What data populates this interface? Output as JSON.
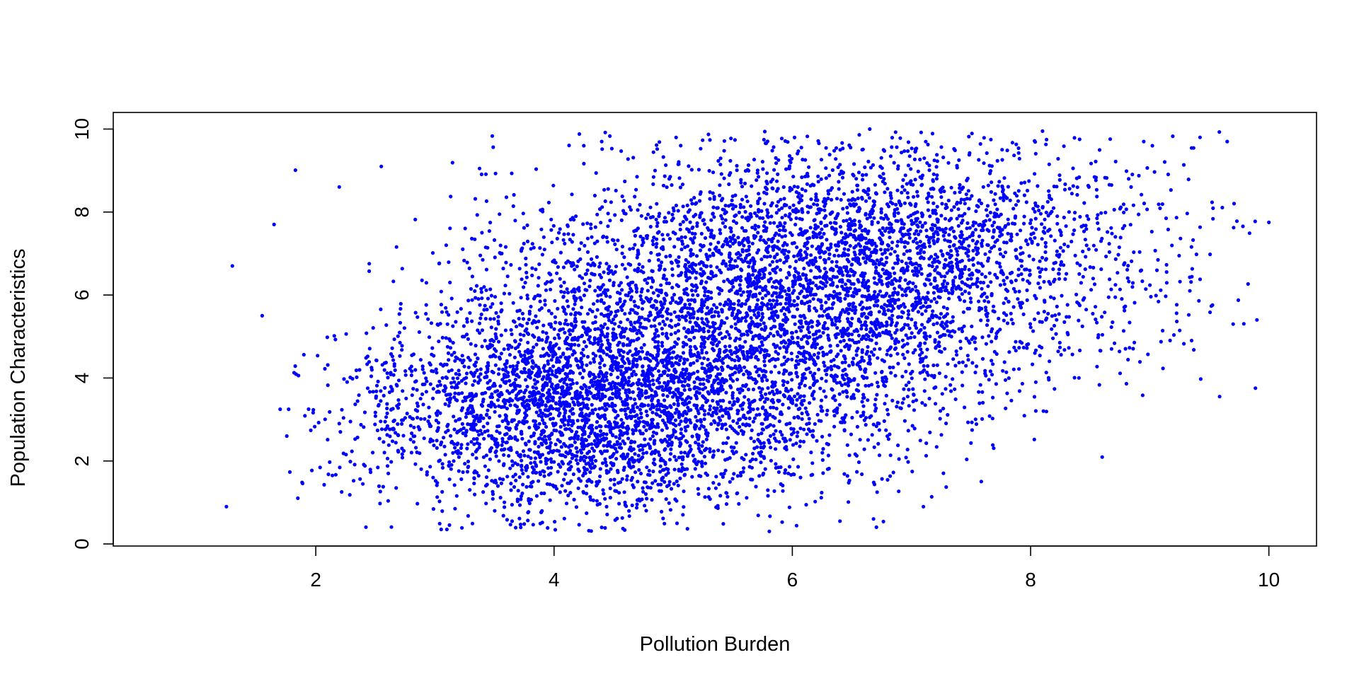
{
  "chart_data": {
    "type": "scatter",
    "title": "",
    "xlabel": "Pollution Burden",
    "ylabel": "Population Characteristics",
    "xlim": [
      0.3,
      10.4
    ],
    "ylim": [
      -0.05,
      10.4
    ],
    "x_ticks": [
      2,
      4,
      6,
      8,
      10
    ],
    "y_ticks": [
      0,
      2,
      4,
      6,
      8,
      10
    ],
    "x_tick_labels": [
      "2",
      "4",
      "6",
      "8",
      "10"
    ],
    "y_tick_labels": [
      "0",
      "2",
      "4",
      "6",
      "8",
      "10"
    ],
    "grid": false,
    "legend": "none",
    "point_color": "#0000ff",
    "point_count_approx": 8000,
    "distribution": {
      "clusters": [
        {
          "mean_x": 4.2,
          "mean_y": 3.3,
          "sd_x": 0.95,
          "sd_y": 1.3,
          "weight": 0.35
        },
        {
          "mean_x": 5.6,
          "mean_y": 5.3,
          "sd_x": 1.1,
          "sd_y": 1.8,
          "weight": 0.35
        },
        {
          "mean_x": 6.8,
          "mean_y": 7.0,
          "sd_x": 1.2,
          "sd_y": 1.5,
          "weight": 0.3
        }
      ]
    },
    "notable_points": [
      {
        "x": 1.25,
        "y": 0.9
      },
      {
        "x": 1.3,
        "y": 6.7
      },
      {
        "x": 1.65,
        "y": 7.7
      },
      {
        "x": 1.55,
        "y": 5.5
      },
      {
        "x": 2.55,
        "y": 9.1
      },
      {
        "x": 4.4,
        "y": 9.7
      },
      {
        "x": 6.65,
        "y": 10.0
      },
      {
        "x": 8.1,
        "y": 9.95
      },
      {
        "x": 8.95,
        "y": 9.7
      },
      {
        "x": 9.65,
        "y": 9.7
      },
      {
        "x": 10.0,
        "y": 7.75
      },
      {
        "x": 9.9,
        "y": 5.4
      },
      {
        "x": 9.7,
        "y": 5.3
      },
      {
        "x": 7.1,
        "y": 0.9
      },
      {
        "x": 6.4,
        "y": 0.55
      },
      {
        "x": 3.1,
        "y": 0.35
      },
      {
        "x": 4.4,
        "y": 0.4
      }
    ]
  }
}
